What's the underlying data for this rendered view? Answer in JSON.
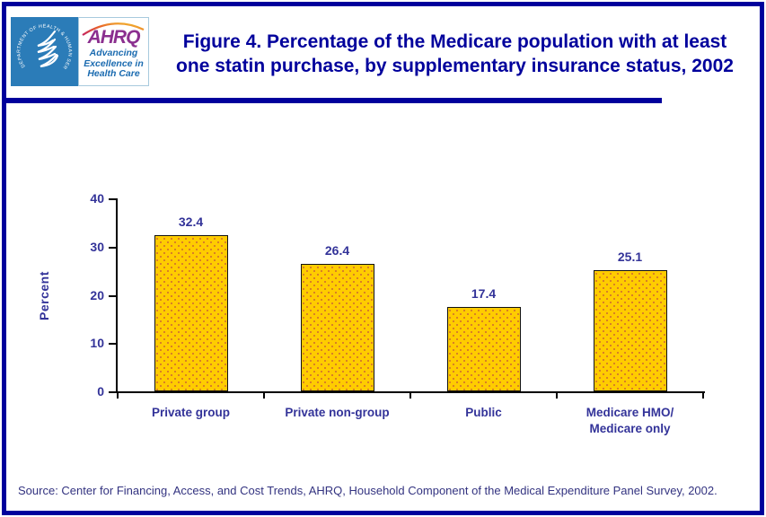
{
  "header": {
    "logo": {
      "seal_text": "DEPARTMENT OF HEALTH & HUMAN SERVICES • USA",
      "ahrq_acronym": "AHRQ",
      "tagline_lines": [
        "Advancing",
        "Excellence in",
        "Health Care"
      ]
    },
    "title_lines": [
      "Figure 4. Percentage of the Medicare population with at least",
      "one statin purchase, by supplementary insurance status, 2002"
    ]
  },
  "chart_data": {
    "type": "bar",
    "title": "Figure 4. Percentage of the Medicare population with at least one statin purchase, by supplementary insurance status, 2002",
    "categories": [
      "Private group",
      "Private non-group",
      "Public",
      "Medicare HMO/\nMedicare only"
    ],
    "values": [
      32.4,
      26.4,
      17.4,
      25.1
    ],
    "value_labels": [
      "32.4",
      "26.4",
      "17.4",
      "25.1"
    ],
    "xlabel": "",
    "ylabel": "Percent",
    "ylim": [
      0,
      40
    ],
    "yticks": [
      0,
      10,
      20,
      30,
      40
    ],
    "grid": false,
    "legend": null,
    "bar_color": "#FFCC00",
    "bar_dot_color": "#CC6633",
    "label_color": "#333399"
  },
  "footer": {
    "source": "Source: Center for Financing, Access, and Cost Trends, AHRQ, Household Component of the Medical Expenditure Panel Survey, 2002."
  },
  "colors": {
    "page_border": "#00009C",
    "title": "#00009C",
    "divider": "#00009C",
    "chart_text": "#333399",
    "axis": "#000000",
    "hhs_blue": "#2B7CB8",
    "ahrq_purple": "#8B2F8F",
    "ahrq_tagline_blue": "#1B6BB0"
  }
}
